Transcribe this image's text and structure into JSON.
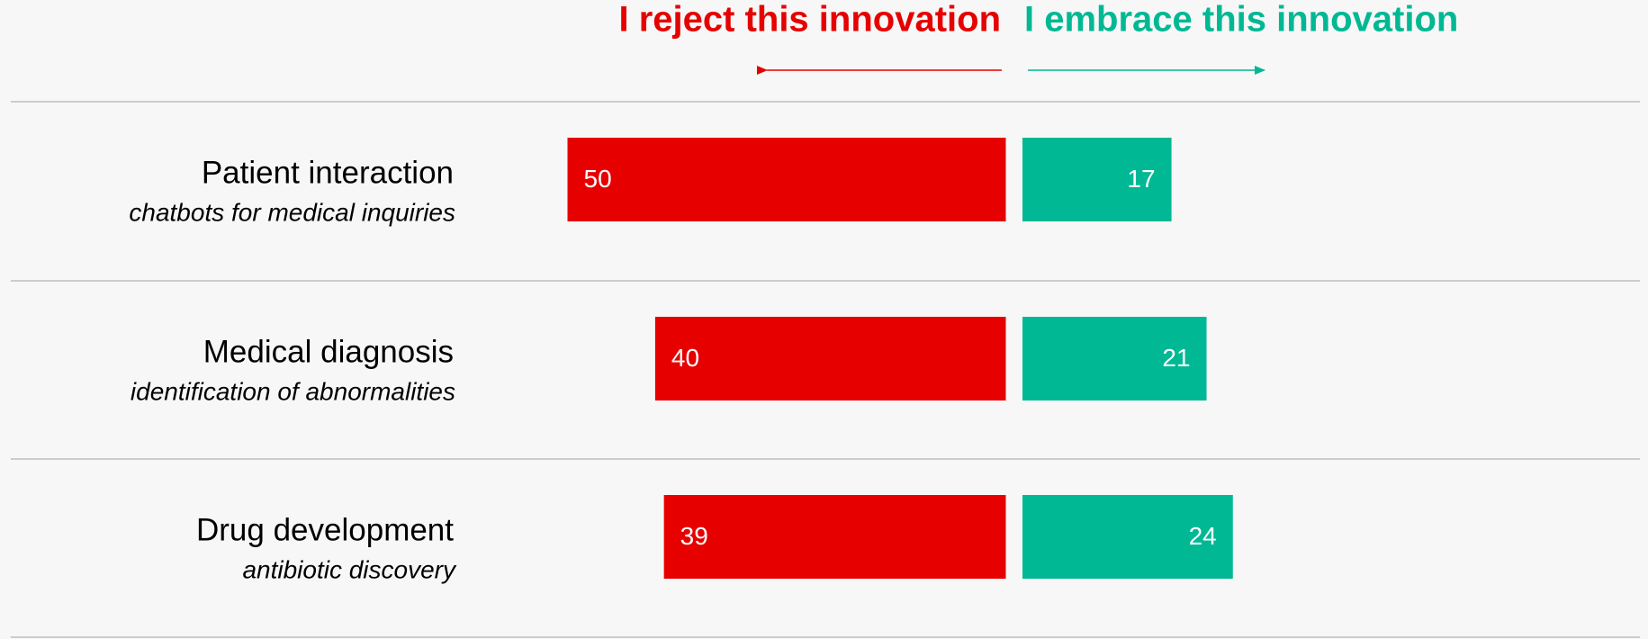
{
  "chart_data": {
    "type": "bar",
    "categories": [
      "Patient interaction",
      "Medical diagnosis",
      "Drug development"
    ],
    "category_subtitles": [
      "chatbots for medical inquiries",
      "identification of abnormalities",
      "antibiotic discovery"
    ],
    "series": [
      {
        "name": "I reject this innovation",
        "color": "#e60000",
        "values": [
          50,
          40,
          39
        ],
        "direction": "left"
      },
      {
        "name": "I embrace this innovation",
        "color": "#00b894",
        "values": [
          17,
          21,
          24
        ],
        "direction": "right"
      }
    ]
  }
}
